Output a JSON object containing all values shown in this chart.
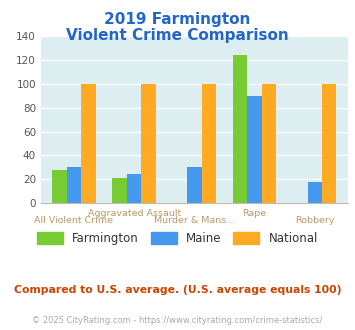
{
  "title_line1": "2019 Farmington",
  "title_line2": "Violent Crime Comparison",
  "categories": [
    "All Violent Crime",
    "Aggravated Assault",
    "Murder & Mans...",
    "Rape",
    "Robbery"
  ],
  "series": {
    "Farmington": [
      28,
      21,
      0,
      124,
      0
    ],
    "Maine": [
      30,
      24,
      30,
      90,
      18
    ],
    "National": [
      100,
      100,
      100,
      100,
      100
    ]
  },
  "colors": {
    "Farmington": "#77cc33",
    "Maine": "#4499ee",
    "National": "#ffaa22"
  },
  "ylim": [
    0,
    140
  ],
  "yticks": [
    0,
    20,
    40,
    60,
    80,
    100,
    120,
    140
  ],
  "plot_bg": "#ddeef0",
  "title_color": "#2266cc",
  "label_color": "#bb9966",
  "footnote1": "Compared to U.S. average. (U.S. average equals 100)",
  "footnote2": "© 2025 CityRating.com - https://www.cityrating.com/crime-statistics/",
  "footnote1_color": "#cc4400",
  "footnote2_color": "#aaaaaa",
  "url_color": "#4499ee"
}
